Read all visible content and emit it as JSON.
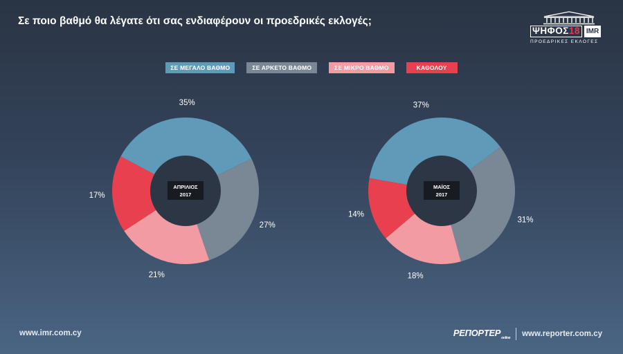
{
  "title": "Σε ποιο βαθμό θα λέγατε ότι σας ενδιαφέρουν οι προεδρικές εκλογές;",
  "brand": {
    "name": "ΨΗΦΟΣ",
    "number": "18",
    "partner": "IMR",
    "subtitle": "ΠΡΟΕΔΡΙΚΕΣ ΕΚΛΟΓΕΣ",
    "icon": "parliament-building-icon"
  },
  "colors": {
    "great_extent": "#5f9ab8",
    "quite_a_lot": "#7a8794",
    "little": "#f29ba2",
    "not_at_all": "#e8404e",
    "donut_hole": "#2d3645"
  },
  "chart_data": {
    "type": "donut",
    "legend_position": "top-center",
    "series_names": [
      "ΣΕ ΜΕΓΑΛΟ ΒΑΘΜΟ",
      "ΣΕ ΑΡΚΕΤΟ ΒΑΘΜΟ",
      "ΣΕ ΜΙΚΡΟ ΒΑΘΜΟ",
      "ΚΑΘΟΛΟΥ"
    ],
    "charts": [
      {
        "center_label": [
          "ΑΠΡΙΛΙΟΣ",
          "2017"
        ],
        "values": [
          35,
          27,
          21,
          17
        ],
        "labels": [
          "35%",
          "27%",
          "21%",
          "17%"
        ]
      },
      {
        "center_label": [
          "ΜΑΪΟΣ",
          "2017"
        ],
        "values": [
          37,
          31,
          18,
          14
        ],
        "labels": [
          "37%",
          "31%",
          "18%",
          "14%"
        ]
      }
    ]
  },
  "footer": {
    "left_url": "www.imr.com.cy",
    "reporter_logo": "ΡΕΠΟΡΤΕΡ",
    "reporter_logo_suffix": "online",
    "right_url": "www.reporter.com.cy"
  }
}
